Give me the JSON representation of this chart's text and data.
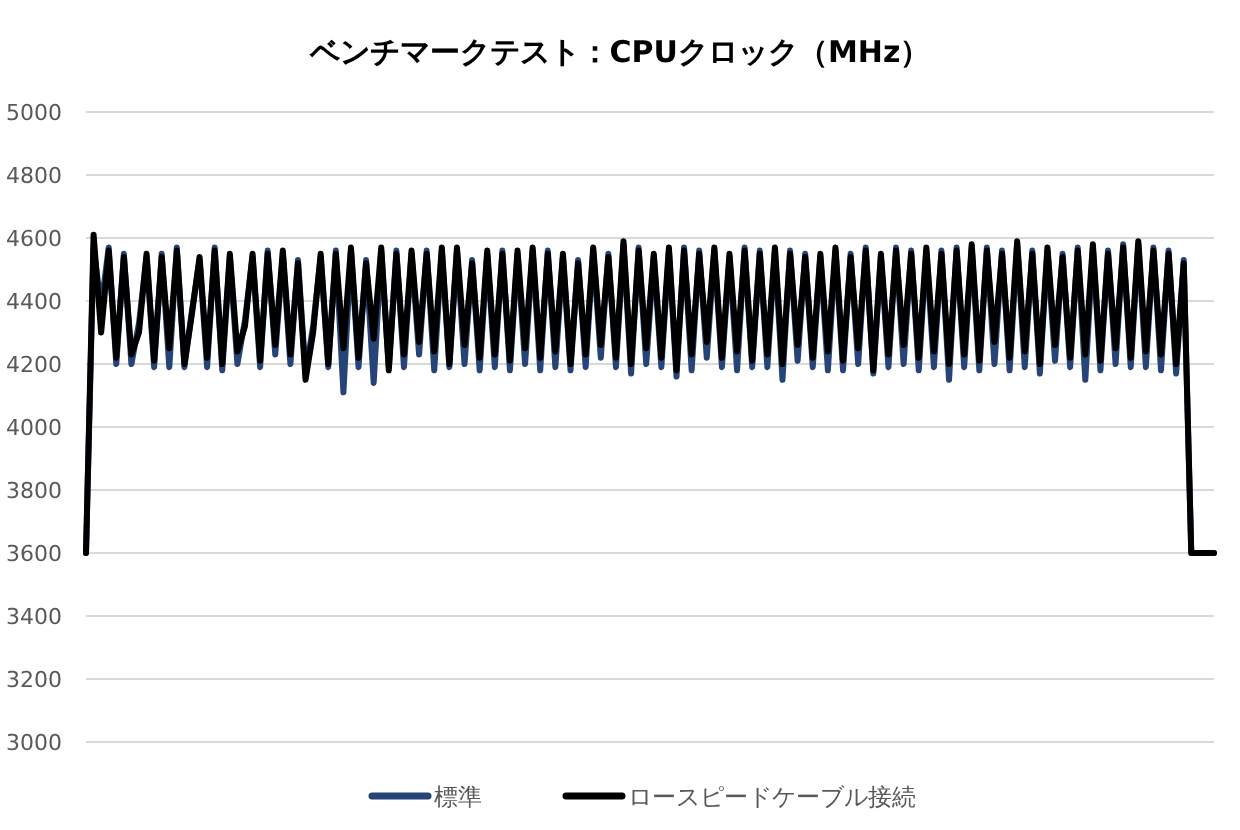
{
  "chart_data": {
    "type": "line",
    "title": "ベンチマークテスト：CPUクロック（MHz）",
    "categories": [
      null,
      null,
      null,
      null,
      null,
      null,
      null,
      null,
      null,
      null,
      null,
      null,
      null,
      null,
      null,
      null,
      null,
      null,
      null,
      null,
      null,
      null,
      null,
      null,
      null,
      null,
      null,
      null,
      null,
      null,
      null,
      null,
      null,
      null,
      null,
      null,
      null,
      null,
      null,
      null,
      null,
      null,
      null,
      null,
      null,
      null,
      null,
      null,
      null,
      null,
      null,
      null,
      null,
      null,
      null,
      null,
      null,
      null,
      null,
      null,
      null,
      null,
      null,
      null,
      null,
      null,
      null,
      null,
      null,
      null,
      null,
      null,
      null,
      null,
      null,
      null,
      null,
      null,
      null,
      null,
      null,
      null,
      null,
      null,
      null,
      null,
      null,
      null,
      null,
      null,
      null,
      null,
      null,
      null,
      null,
      null,
      null,
      null,
      null,
      null,
      null,
      null,
      null,
      null,
      null,
      null,
      null,
      null,
      null,
      null,
      null,
      null,
      null,
      null,
      null,
      null,
      null,
      null,
      null,
      null,
      null,
      null,
      null,
      null,
      null,
      null,
      null,
      null,
      null,
      null,
      null,
      null,
      null,
      null,
      null,
      null,
      null,
      null,
      null,
      null,
      null,
      null,
      null,
      null,
      null,
      null,
      null,
      null,
      null,
      null
    ],
    "series": [
      {
        "name": "標準",
        "color": "#264478",
        "values": [
          3600,
          4570,
          4380,
          4570,
          4200,
          4550,
          4200,
          4330,
          4540,
          4190,
          4550,
          4190,
          4570,
          4190,
          4370,
          4530,
          4190,
          4570,
          4180,
          4540,
          4200,
          4340,
          4540,
          4190,
          4560,
          4230,
          4550,
          4200,
          4530,
          4170,
          4320,
          4540,
          4190,
          4560,
          4110,
          4560,
          4190,
          4530,
          4140,
          4560,
          4190,
          4560,
          4190,
          4550,
          4230,
          4560,
          4180,
          4560,
          4190,
          4560,
          4200,
          4530,
          4180,
          4550,
          4190,
          4560,
          4180,
          4550,
          4200,
          4560,
          4180,
          4560,
          4190,
          4540,
          4180,
          4530,
          4190,
          4560,
          4220,
          4550,
          4190,
          4580,
          4170,
          4570,
          4200,
          4540,
          4190,
          4560,
          4160,
          4570,
          4180,
          4560,
          4220,
          4560,
          4190,
          4540,
          4180,
          4570,
          4190,
          4560,
          4190,
          4560,
          4150,
          4560,
          4210,
          4550,
          4190,
          4540,
          4180,
          4560,
          4180,
          4550,
          4200,
          4570,
          4170,
          4540,
          4190,
          4570,
          4200,
          4560,
          4180,
          4560,
          4190,
          4560,
          4150,
          4570,
          4190,
          4570,
          4180,
          4570,
          4200,
          4560,
          4180,
          4580,
          4190,
          4560,
          4170,
          4560,
          4210,
          4550,
          4190,
          4570,
          4150,
          4570,
          4180,
          4560,
          4200,
          4580,
          4190,
          4580,
          4190,
          4570,
          4180,
          4560,
          4170,
          4530,
          3600,
          3600,
          3600,
          3600
        ]
      },
      {
        "name": "ロースピードケーブル接続",
        "color": "#000000",
        "values": [
          3600,
          4610,
          4300,
          4560,
          4220,
          4540,
          4230,
          4300,
          4550,
          4210,
          4540,
          4250,
          4560,
          4200,
          4360,
          4540,
          4220,
          4560,
          4200,
          4550,
          4240,
          4320,
          4550,
          4210,
          4550,
          4260,
          4560,
          4230,
          4520,
          4150,
          4300,
          4550,
          4200,
          4550,
          4250,
          4570,
          4220,
          4520,
          4280,
          4570,
          4180,
          4550,
          4230,
          4560,
          4270,
          4550,
          4240,
          4570,
          4200,
          4570,
          4260,
          4520,
          4220,
          4560,
          4230,
          4550,
          4210,
          4560,
          4250,
          4570,
          4220,
          4550,
          4240,
          4550,
          4200,
          4520,
          4230,
          4570,
          4260,
          4540,
          4220,
          4590,
          4200,
          4560,
          4250,
          4550,
          4220,
          4570,
          4180,
          4560,
          4230,
          4550,
          4270,
          4570,
          4220,
          4550,
          4240,
          4560,
          4210,
          4550,
          4230,
          4570,
          4200,
          4550,
          4260,
          4540,
          4220,
          4550,
          4240,
          4570,
          4210,
          4540,
          4250,
          4560,
          4180,
          4550,
          4230,
          4560,
          4260,
          4550,
          4220,
          4570,
          4240,
          4550,
          4200,
          4560,
          4230,
          4580,
          4210,
          4560,
          4270,
          4550,
          4220,
          4590,
          4240,
          4550,
          4200,
          4570,
          4260,
          4540,
          4220,
          4560,
          4230,
          4580,
          4210,
          4550,
          4250,
          4570,
          4220,
          4590,
          4240,
          4560,
          4230,
          4550,
          4200,
          4520,
          3600,
          3600,
          3600,
          3600
        ]
      }
    ],
    "ylim": [
      3000,
      5000
    ],
    "yticks": [
      3000,
      3200,
      3400,
      3600,
      3800,
      4000,
      4200,
      4400,
      4600,
      4800,
      5000
    ],
    "grid": "y",
    "legend": "bottom",
    "tick_labels": "y"
  }
}
